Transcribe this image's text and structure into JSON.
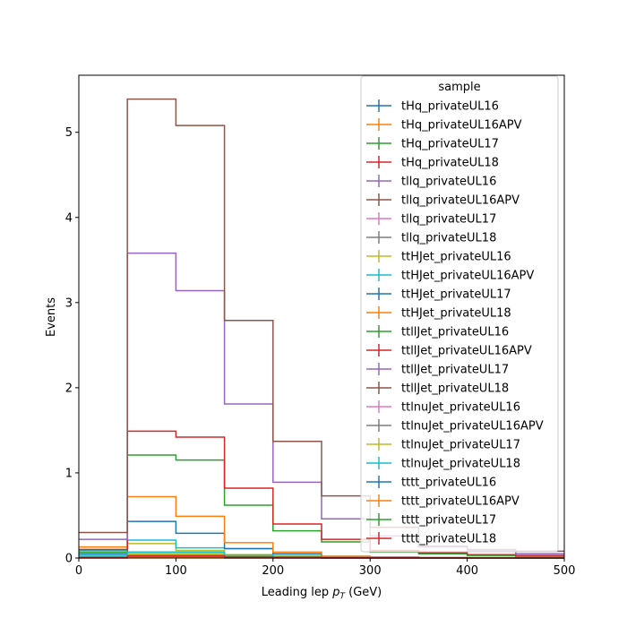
{
  "chart_data": {
    "type": "histogram-step",
    "xlabel_main": "Leading lep ",
    "xlabel_sym": "p",
    "xlabel_sub": "T",
    "xlabel_unit": " (GeV)",
    "ylabel": "Events",
    "xlim": [
      0,
      500
    ],
    "ylim": [
      0,
      5.67
    ],
    "xticks": [
      0,
      100,
      200,
      300,
      400,
      500
    ],
    "yticks": [
      0,
      1,
      2,
      3,
      4,
      5
    ],
    "grid": false,
    "legend": {
      "title": "sample",
      "placement": "upper right"
    },
    "bin_edges": [
      0,
      50,
      100,
      150,
      200,
      250,
      300,
      350,
      400,
      450,
      500
    ],
    "series": [
      {
        "name": "tHq_privateUL16",
        "color": "#1f77b4",
        "values": [
          0.001,
          0.002,
          0.002,
          0.001,
          0.001,
          0.0005,
          0.0003,
          0.0002,
          0.0001,
          0.0001
        ]
      },
      {
        "name": "tHq_privateUL16APV",
        "color": "#ff7f0e",
        "values": [
          0.001,
          0.002,
          0.002,
          0.001,
          0.001,
          0.0005,
          0.0003,
          0.0002,
          0.0001,
          0.0001
        ]
      },
      {
        "name": "tHq_privateUL17",
        "color": "#2ca02c",
        "values": [
          0.002,
          0.004,
          0.004,
          0.002,
          0.001,
          0.001,
          0.0005,
          0.0003,
          0.0002,
          0.0001
        ]
      },
      {
        "name": "tHq_privateUL18",
        "color": "#d62728",
        "values": [
          0.003,
          0.006,
          0.006,
          0.003,
          0.002,
          0.001,
          0.0007,
          0.0004,
          0.0003,
          0.0002
        ]
      },
      {
        "name": "tllq_privateUL16",
        "color": "#9467bd",
        "values": [
          0.01,
          0.03,
          0.03,
          0.02,
          0.01,
          0.006,
          0.004,
          0.002,
          0.001,
          0.001
        ]
      },
      {
        "name": "tllq_privateUL16APV",
        "color": "#8c564b",
        "values": [
          0.01,
          0.03,
          0.03,
          0.02,
          0.01,
          0.006,
          0.004,
          0.002,
          0.001,
          0.001
        ]
      },
      {
        "name": "tllq_privateUL17",
        "color": "#e377c2",
        "values": [
          0.02,
          0.05,
          0.05,
          0.03,
          0.015,
          0.008,
          0.005,
          0.003,
          0.002,
          0.001
        ]
      },
      {
        "name": "tllq_privateUL18",
        "color": "#7f7f7f",
        "values": [
          0.03,
          0.07,
          0.07,
          0.04,
          0.02,
          0.01,
          0.006,
          0.004,
          0.002,
          0.001
        ]
      },
      {
        "name": "ttHJet_privateUL16",
        "color": "#bcbd22",
        "values": [
          0.1,
          0.17,
          0.09,
          0.04,
          0.03,
          0.01,
          0.006,
          0.004,
          0.003,
          0.002
        ]
      },
      {
        "name": "ttHJet_privateUL16APV",
        "color": "#17becf",
        "values": [
          0.09,
          0.21,
          0.12,
          0.11,
          0.05,
          0.02,
          0.01,
          0.006,
          0.004,
          0.002
        ]
      },
      {
        "name": "ttHJet_privateUL17",
        "color": "#1f77b4",
        "values": [
          0.05,
          0.43,
          0.29,
          0.11,
          0.05,
          0.02,
          0.01,
          0.006,
          0.004,
          0.003
        ]
      },
      {
        "name": "ttHJet_privateUL18",
        "color": "#ff7f0e",
        "values": [
          0.13,
          0.72,
          0.49,
          0.18,
          0.07,
          0.02,
          0.01,
          0.008,
          0.005,
          0.003
        ]
      },
      {
        "name": "ttllJet_privateUL16",
        "color": "#2ca02c",
        "values": [
          0.07,
          1.21,
          1.15,
          0.62,
          0.32,
          0.19,
          0.07,
          0.05,
          0.03,
          0.02
        ]
      },
      {
        "name": "ttllJet_privateUL16APV",
        "color": "#d62728",
        "values": [
          0.1,
          1.49,
          1.42,
          0.82,
          0.4,
          0.22,
          0.09,
          0.06,
          0.04,
          0.03
        ]
      },
      {
        "name": "ttllJet_privateUL17",
        "color": "#9467bd",
        "values": [
          0.22,
          3.58,
          3.14,
          1.81,
          0.89,
          0.46,
          0.26,
          0.13,
          0.09,
          0.05
        ]
      },
      {
        "name": "ttllJet_privateUL18",
        "color": "#8c564b",
        "values": [
          0.3,
          5.39,
          5.08,
          2.79,
          1.37,
          0.73,
          0.36,
          0.14,
          0.1,
          0.08
        ]
      },
      {
        "name": "ttlnuJet_privateUL16",
        "color": "#e377c2",
        "values": [
          0.01,
          0.03,
          0.03,
          0.015,
          0.008,
          0.004,
          0.002,
          0.001,
          0.001,
          0.0005
        ]
      },
      {
        "name": "ttlnuJet_privateUL16APV",
        "color": "#7f7f7f",
        "values": [
          0.01,
          0.03,
          0.03,
          0.015,
          0.008,
          0.004,
          0.002,
          0.001,
          0.001,
          0.0005
        ]
      },
      {
        "name": "ttlnuJet_privateUL17",
        "color": "#bcbd22",
        "values": [
          0.02,
          0.05,
          0.05,
          0.025,
          0.012,
          0.006,
          0.003,
          0.002,
          0.001,
          0.001
        ]
      },
      {
        "name": "ttlnuJet_privateUL18",
        "color": "#17becf",
        "values": [
          0.03,
          0.07,
          0.07,
          0.035,
          0.016,
          0.008,
          0.004,
          0.002,
          0.001,
          0.001
        ]
      },
      {
        "name": "tttt_privateUL16",
        "color": "#1f77b4",
        "values": [
          0.003,
          0.01,
          0.01,
          0.006,
          0.003,
          0.002,
          0.001,
          0.001,
          0.0005,
          0.0003
        ]
      },
      {
        "name": "tttt_privateUL16APV",
        "color": "#ff7f0e",
        "values": [
          0.004,
          0.012,
          0.012,
          0.007,
          0.004,
          0.002,
          0.001,
          0.001,
          0.0005,
          0.0003
        ]
      },
      {
        "name": "tttt_privateUL17",
        "color": "#2ca02c",
        "values": [
          0.006,
          0.02,
          0.02,
          0.012,
          0.006,
          0.003,
          0.002,
          0.001,
          0.0008,
          0.0005
        ]
      },
      {
        "name": "tttt_privateUL18",
        "color": "#d62728",
        "values": [
          0.008,
          0.025,
          0.025,
          0.015,
          0.008,
          0.004,
          0.002,
          0.001,
          0.001,
          0.0006
        ]
      }
    ]
  }
}
